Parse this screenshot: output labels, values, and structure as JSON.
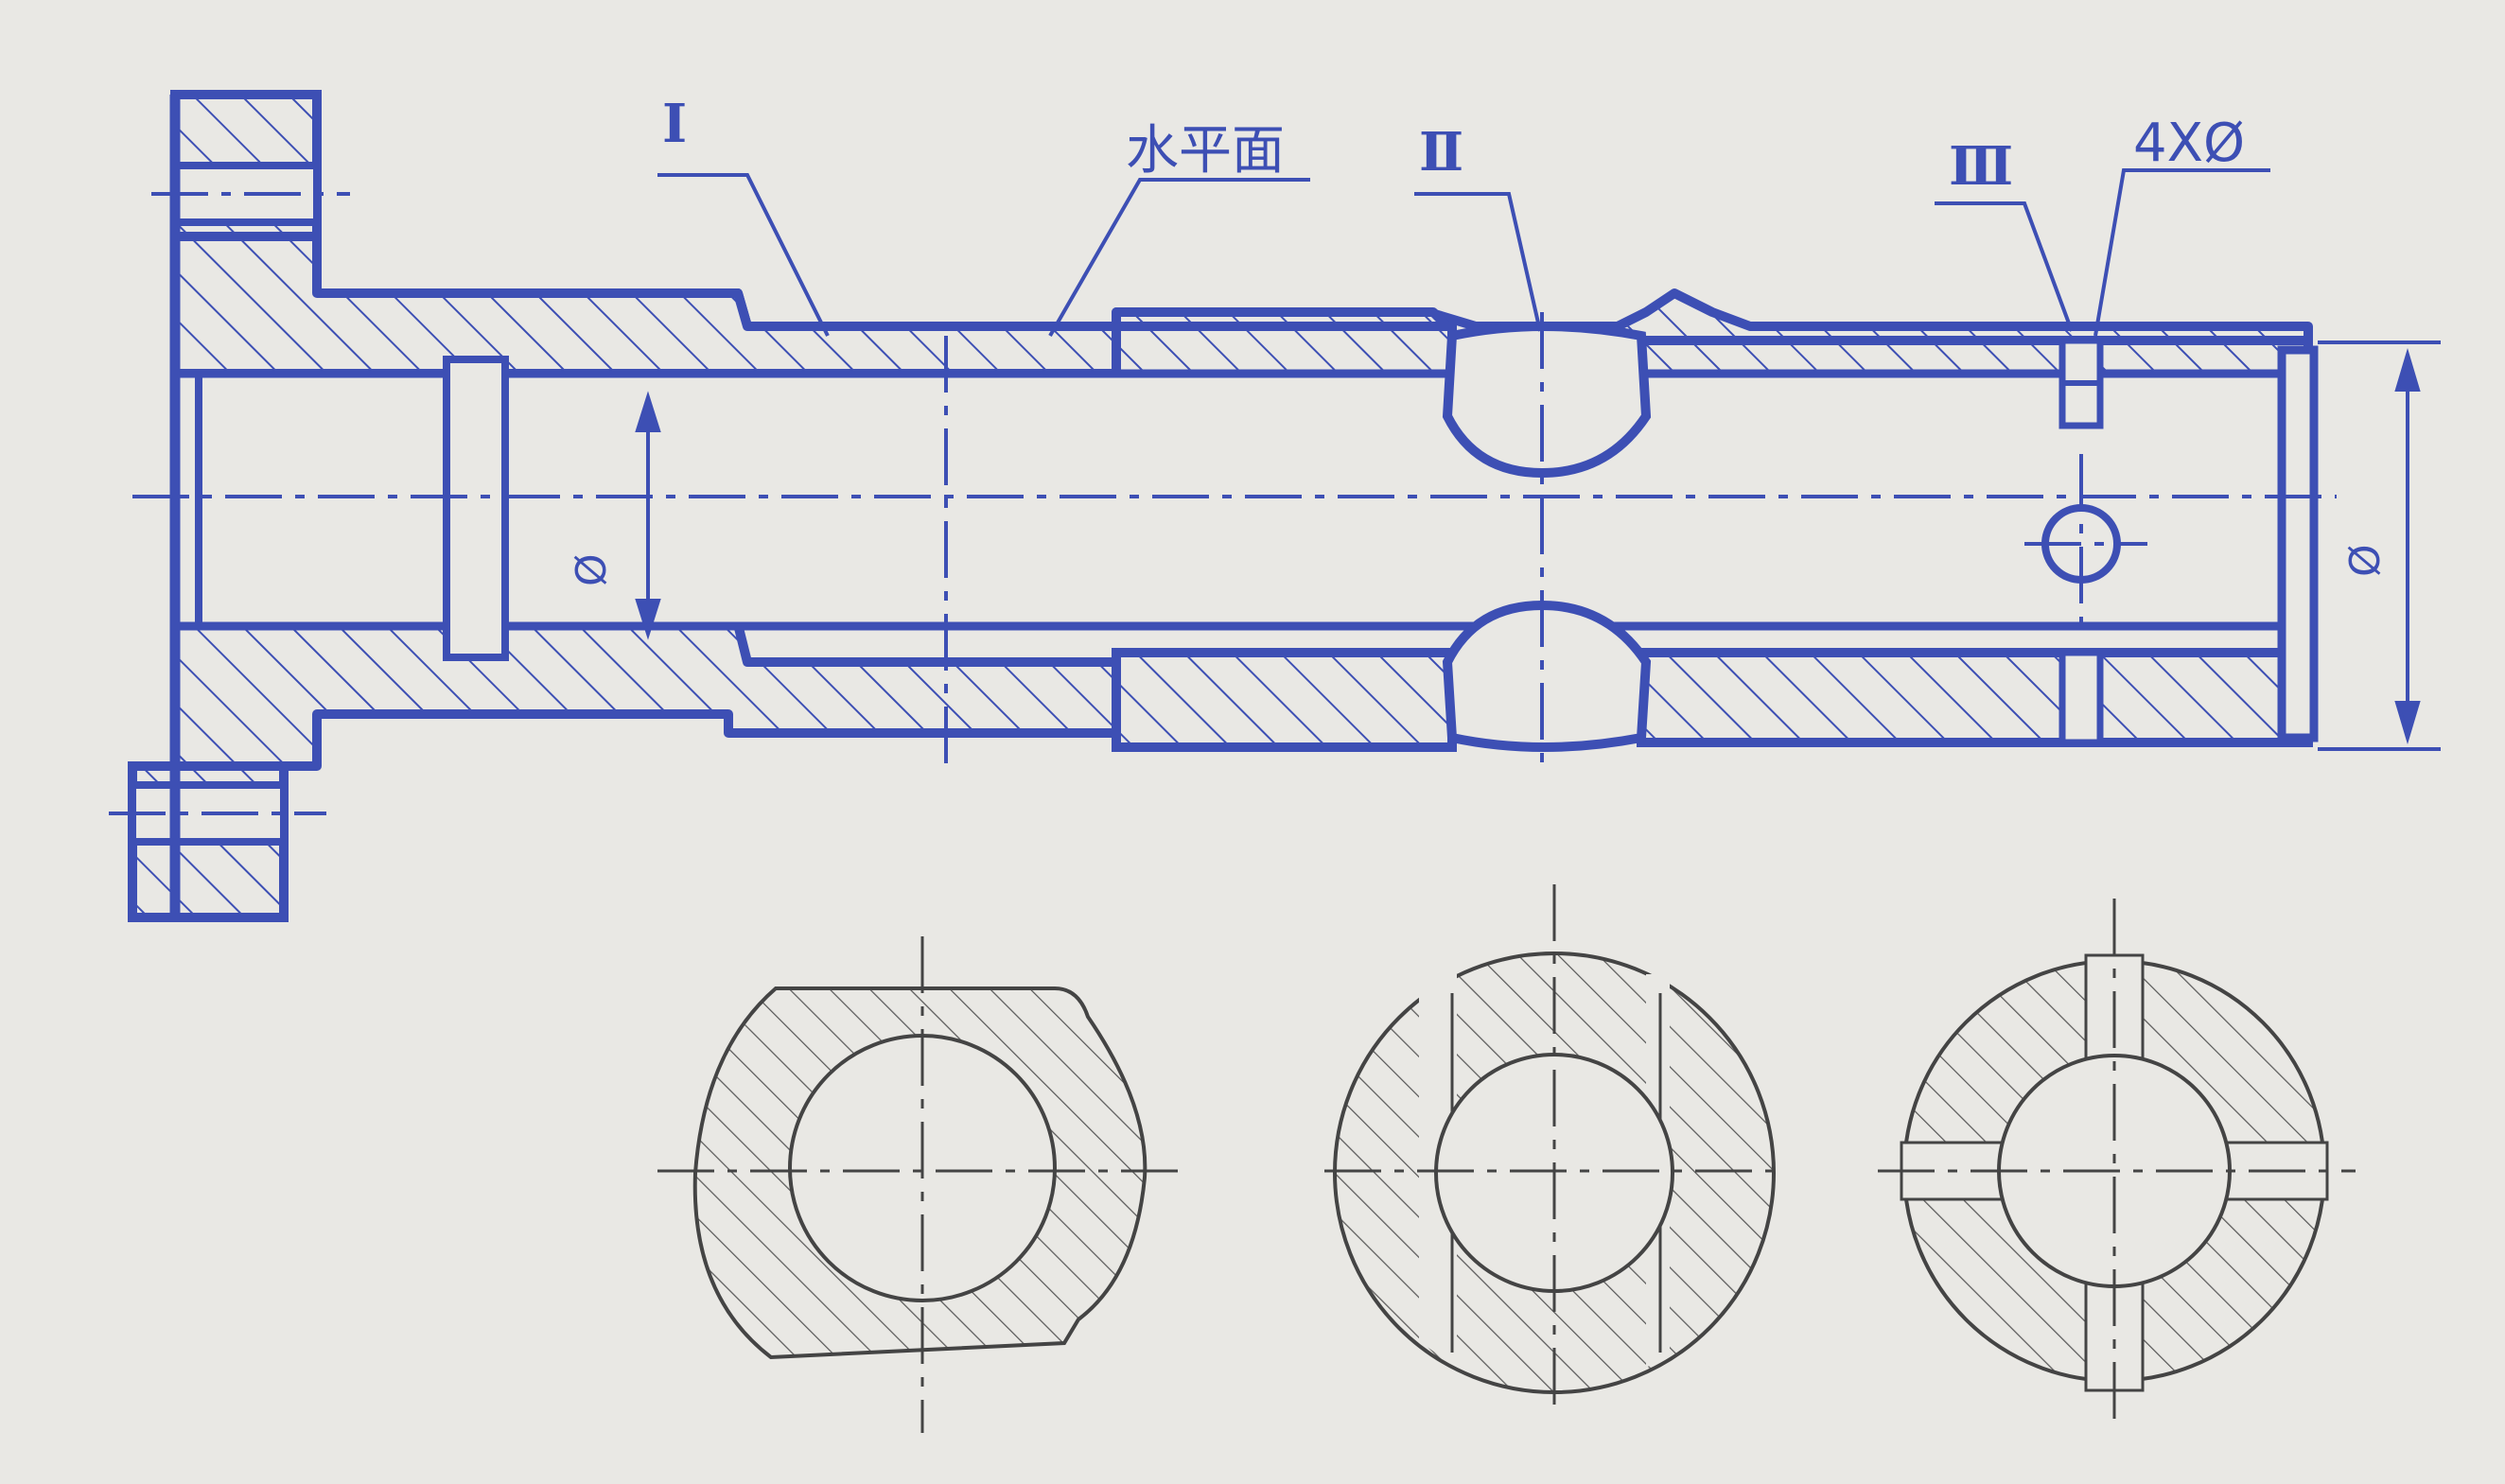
{
  "labels": {
    "section_1": "I",
    "section_2": "Ⅱ",
    "section_3": "Ⅲ",
    "plane": "水平面",
    "holes": "4XØ",
    "dia_left": "Ø",
    "dia_right": "Ø"
  },
  "colors": {
    "ink_blue": "#3d4fb4",
    "pencil": "#555555",
    "paper": "#e9e8e4"
  }
}
